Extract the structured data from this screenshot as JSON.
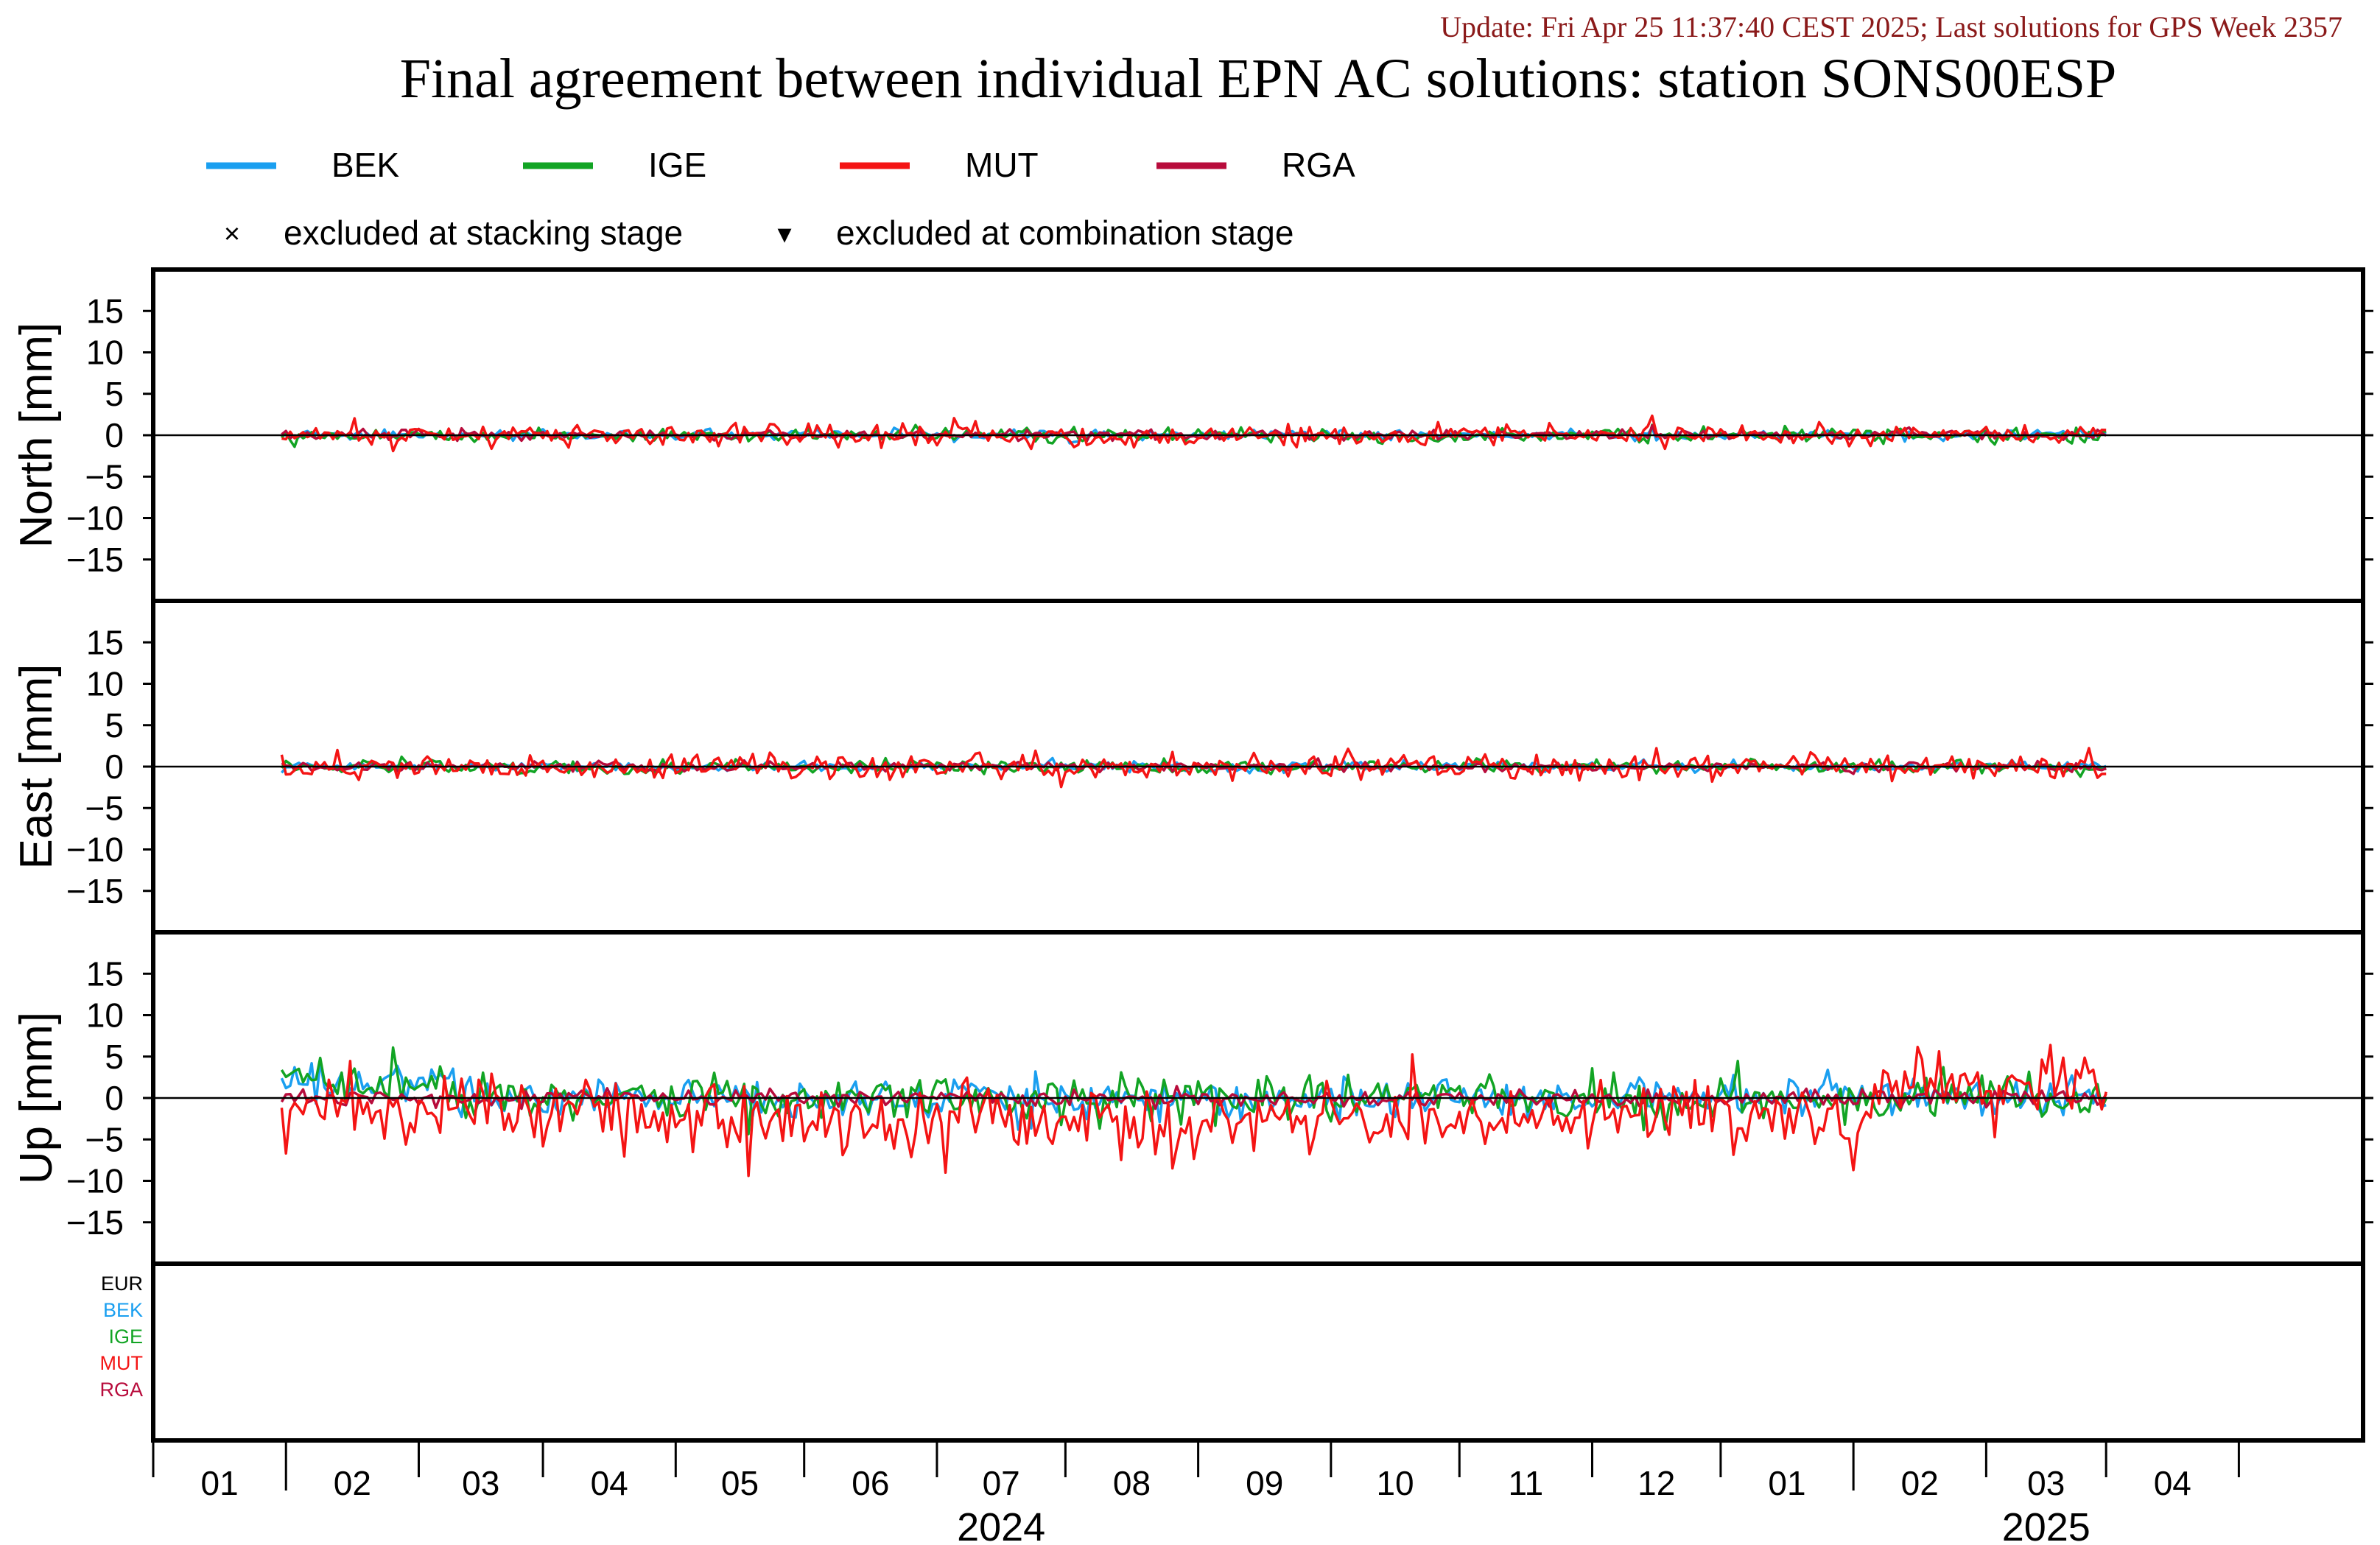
{
  "header": {
    "update_line": "Update: Fri Apr 25 11:37:40 CEST 2025; Last solutions for GPS Week 2357",
    "title": "Final agreement between individual EPN AC solutions: station SONS00ESP"
  },
  "legend": {
    "series": [
      {
        "name": "BEK",
        "color": "#1a9ff0"
      },
      {
        "name": "IGE",
        "color": "#12a424"
      },
      {
        "name": "MUT",
        "color": "#f41414"
      },
      {
        "name": "RGA",
        "color": "#b80c3c"
      }
    ],
    "markers": [
      {
        "symbol": "×",
        "label": "excluded at stacking stage"
      },
      {
        "symbol": "▾",
        "label": "excluded at combination stage"
      }
    ]
  },
  "chart_data": {
    "type": "line",
    "x_range": [
      "2023-12-01",
      "2025-04-30"
    ],
    "x_data_range": [
      "2023-12-31",
      "2025-03-01"
    ],
    "panels": [
      {
        "id": "north",
        "ylabel": "North [mm]",
        "ylim": [
          -20,
          20
        ],
        "yticks": [
          -15,
          -10,
          -5,
          0,
          5,
          10,
          15
        ],
        "series": [
          {
            "name": "BEK",
            "spread_mm": 0.3
          },
          {
            "name": "IGE",
            "spread_mm": 0.4
          },
          {
            "name": "MUT",
            "spread_mm": 0.7
          },
          {
            "name": "RGA",
            "spread_mm": 0.3
          }
        ]
      },
      {
        "id": "east",
        "ylabel": "East [mm]",
        "ylim": [
          -20,
          20
        ],
        "yticks": [
          -15,
          -10,
          -5,
          0,
          5,
          10,
          15
        ],
        "series": [
          {
            "name": "BEK",
            "spread_mm": 0.3
          },
          {
            "name": "IGE",
            "spread_mm": 0.4
          },
          {
            "name": "MUT",
            "spread_mm": 0.8
          },
          {
            "name": "RGA",
            "spread_mm": 0.3
          }
        ]
      },
      {
        "id": "up",
        "ylabel": "Up [mm]",
        "ylim": [
          -20,
          20
        ],
        "yticks": [
          -15,
          -10,
          -5,
          0,
          5,
          10,
          15
        ],
        "series": [
          {
            "name": "BEK",
            "spread_mm": 1.2
          },
          {
            "name": "IGE",
            "spread_mm": 1.3
          },
          {
            "name": "MUT",
            "spread_mm": 2.6
          },
          {
            "name": "RGA",
            "spread_mm": 0.5
          }
        ]
      }
    ],
    "stats_panel_labels": [
      {
        "name": "EUR",
        "color": "#000000"
      },
      {
        "name": "BEK",
        "color": "#1a9ff0"
      },
      {
        "name": "IGE",
        "color": "#12a424"
      },
      {
        "name": "MUT",
        "color": "#f41414"
      },
      {
        "name": "RGA",
        "color": "#b80c3c"
      }
    ],
    "x_month_labels": [
      "01",
      "02",
      "03",
      "04",
      "05",
      "06",
      "07",
      "08",
      "09",
      "10",
      "11",
      "12",
      "01",
      "02",
      "03",
      "04"
    ],
    "x_year_labels": [
      {
        "label": "2024",
        "month_index": 6
      },
      {
        "label": "2025",
        "month_index": 14
      }
    ]
  }
}
